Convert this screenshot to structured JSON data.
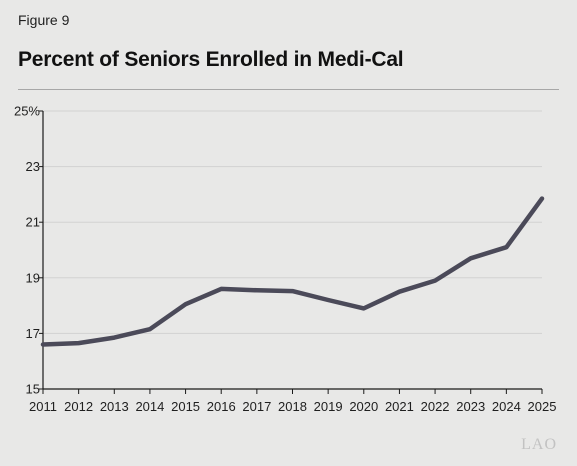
{
  "figure_label": "Figure 9",
  "title": "Percent of Seniors Enrolled in Medi-Cal",
  "watermark": "LAO",
  "colors": {
    "background": "#e8e8e7",
    "line": "#4b4a59",
    "grid": "#d2d2d2",
    "axis": "#1a1a1a"
  },
  "chart_data": {
    "type": "line",
    "title": "Percent of Seniors Enrolled in Medi-Cal",
    "xlabel": "",
    "ylabel": "",
    "x": [
      "2011",
      "2012",
      "2013",
      "2014",
      "2015",
      "2016",
      "2017",
      "2018",
      "2019",
      "2020",
      "2021",
      "2022",
      "2023",
      "2024",
      "2025"
    ],
    "series": [
      {
        "values": [
          16.6,
          16.65,
          16.85,
          17.15,
          18.05,
          18.6,
          18.55,
          18.52,
          18.2,
          17.9,
          18.5,
          18.9,
          19.7,
          20.1,
          21.85
        ]
      }
    ],
    "ylim": [
      15,
      25
    ],
    "yticks": [
      15,
      17,
      19,
      21,
      23,
      25
    ],
    "ytick_labels": [
      "15",
      "17",
      "19",
      "21",
      "23",
      "25%"
    ],
    "grid": true,
    "legend": "none"
  }
}
